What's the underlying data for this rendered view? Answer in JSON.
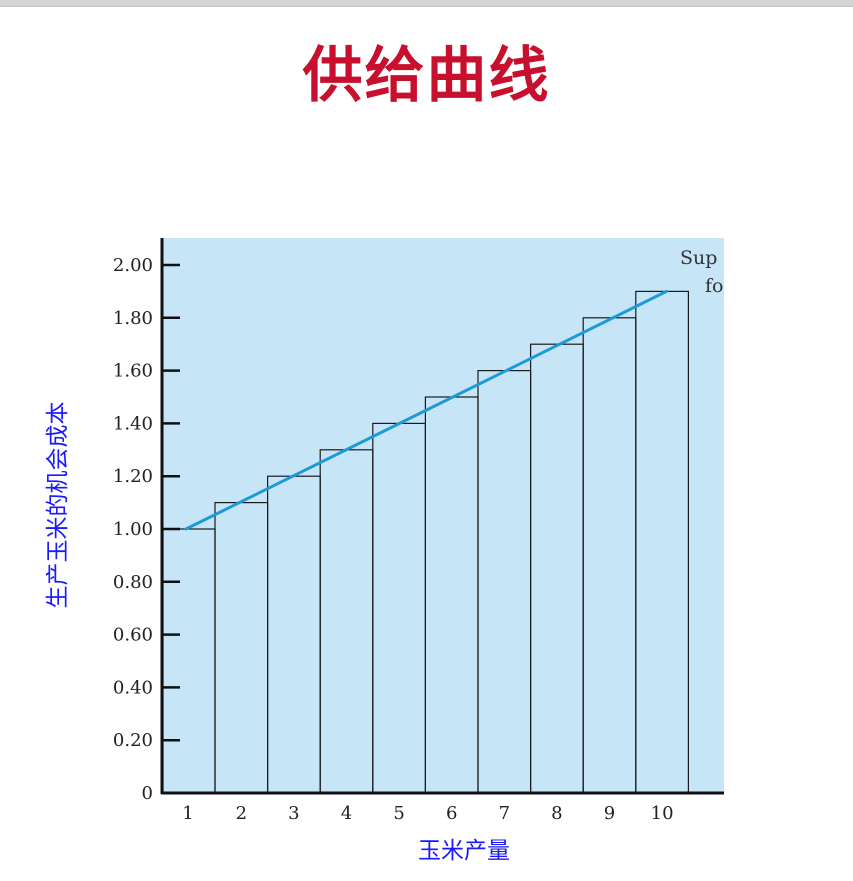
{
  "slide": {
    "title": "供给曲线"
  },
  "chart_data": {
    "type": "bar",
    "categories": [
      "1",
      "2",
      "3",
      "4",
      "5",
      "6",
      "7",
      "8",
      "9",
      "10"
    ],
    "values": [
      1.0,
      1.1,
      1.2,
      1.3,
      1.4,
      1.5,
      1.6,
      1.7,
      1.8,
      1.9
    ],
    "line": {
      "x": [
        1,
        10
      ],
      "y": [
        1.0,
        1.9
      ]
    },
    "xlabel": "玉米产量",
    "ylabel": "生产玉米的机会成本",
    "ylim": [
      0,
      2.0
    ],
    "yticks": [
      "0",
      "0.20",
      "0.40",
      "0.60",
      "0.80",
      "1.00",
      "1.20",
      "1.40",
      "1.60",
      "1.80",
      "2.00"
    ],
    "annotation": [
      "Sup",
      "fo"
    ],
    "colors": {
      "plot_bg": "#c6e5f7",
      "line": "#1e9ad6",
      "bar_edge": "#1a1a1a",
      "axis": "#111111"
    }
  }
}
